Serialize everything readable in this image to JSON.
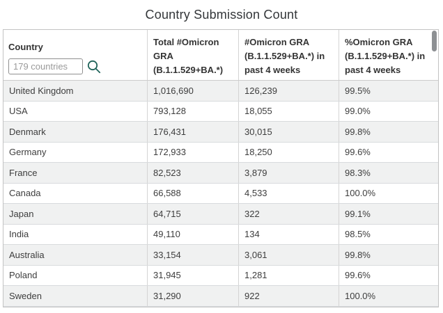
{
  "page": {
    "title": "Country Submission Count"
  },
  "table": {
    "search": {
      "label": "Country",
      "placeholder": "179 countries",
      "icon": "search-icon"
    },
    "columns": [
      "Country",
      "Total #Omicron GRA (B.1.1.529+BA.*)",
      "#Omicron GRA (B.1.1.529+BA.*) in past 4 weeks",
      "%Omicron GRA (B.1.1.529+BA.*) in past 4 weeks"
    ],
    "rows": [
      {
        "country": "United Kingdom",
        "total": "1,016,690",
        "recent": "126,239",
        "percent": "99.5%"
      },
      {
        "country": "USA",
        "total": "793,128",
        "recent": "18,055",
        "percent": "99.0%"
      },
      {
        "country": "Denmark",
        "total": "176,431",
        "recent": "30,015",
        "percent": "99.8%"
      },
      {
        "country": "Germany",
        "total": "172,933",
        "recent": "18,250",
        "percent": "99.6%"
      },
      {
        "country": "France",
        "total": "82,523",
        "recent": "3,879",
        "percent": "98.3%"
      },
      {
        "country": "Canada",
        "total": "66,588",
        "recent": "4,533",
        "percent": "100.0%"
      },
      {
        "country": "Japan",
        "total": "64,715",
        "recent": "322",
        "percent": "99.1%"
      },
      {
        "country": "India",
        "total": "49,110",
        "recent": "134",
        "percent": "98.5%"
      },
      {
        "country": "Australia",
        "total": "33,154",
        "recent": "3,061",
        "percent": "99.8%"
      },
      {
        "country": "Poland",
        "total": "31,945",
        "recent": "1,281",
        "percent": "99.6%"
      },
      {
        "country": "Sweden",
        "total": "31,290",
        "recent": "922",
        "percent": "100.0%"
      }
    ]
  },
  "scrollbar": {
    "visible": true
  },
  "colors": {
    "accent_teal": "#20645a",
    "row_alt_bg": "#f0f1f1",
    "border": "#c3c3c3",
    "scroll_thumb": "#8d9093"
  }
}
